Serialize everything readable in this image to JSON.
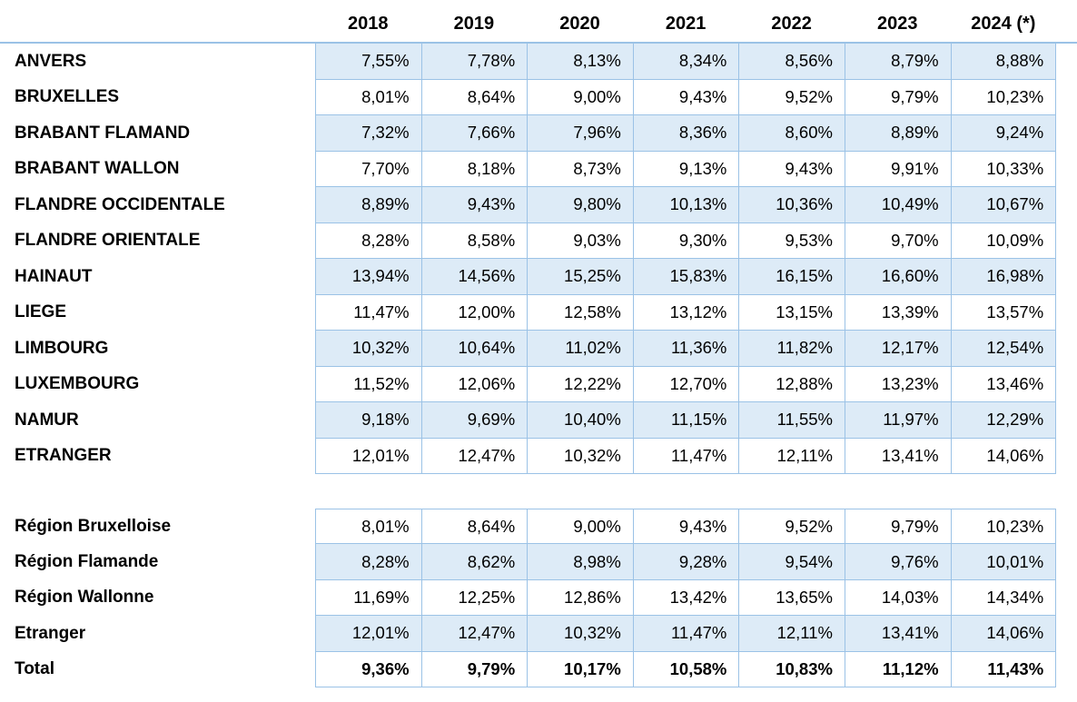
{
  "chart_data": {
    "type": "table",
    "columns": [
      "2018",
      "2019",
      "2020",
      "2021",
      "2022",
      "2023",
      "2024 (*)"
    ],
    "provinces": {
      "rows": [
        {
          "label": "ANVERS",
          "values": [
            "7,55%",
            "7,78%",
            "8,13%",
            "8,34%",
            "8,56%",
            "8,79%",
            "8,88%"
          ]
        },
        {
          "label": "BRUXELLES",
          "values": [
            "8,01%",
            "8,64%",
            "9,00%",
            "9,43%",
            "9,52%",
            "9,79%",
            "10,23%"
          ]
        },
        {
          "label": "BRABANT FLAMAND",
          "values": [
            "7,32%",
            "7,66%",
            "7,96%",
            "8,36%",
            "8,60%",
            "8,89%",
            "9,24%"
          ]
        },
        {
          "label": "BRABANT WALLON",
          "values": [
            "7,70%",
            "8,18%",
            "8,73%",
            "9,13%",
            "9,43%",
            "9,91%",
            "10,33%"
          ]
        },
        {
          "label": "FLANDRE OCCIDENTALE",
          "values": [
            "8,89%",
            "9,43%",
            "9,80%",
            "10,13%",
            "10,36%",
            "10,49%",
            "10,67%"
          ]
        },
        {
          "label": "FLANDRE ORIENTALE",
          "values": [
            "8,28%",
            "8,58%",
            "9,03%",
            "9,30%",
            "9,53%",
            "9,70%",
            "10,09%"
          ]
        },
        {
          "label": "HAINAUT",
          "values": [
            "13,94%",
            "14,56%",
            "15,25%",
            "15,83%",
            "16,15%",
            "16,60%",
            "16,98%"
          ]
        },
        {
          "label": "LIEGE",
          "values": [
            "11,47%",
            "12,00%",
            "12,58%",
            "13,12%",
            "13,15%",
            "13,39%",
            "13,57%"
          ]
        },
        {
          "label": "LIMBOURG",
          "values": [
            "10,32%",
            "10,64%",
            "11,02%",
            "11,36%",
            "11,82%",
            "12,17%",
            "12,54%"
          ]
        },
        {
          "label": "LUXEMBOURG",
          "values": [
            "11,52%",
            "12,06%",
            "12,22%",
            "12,70%",
            "12,88%",
            "13,23%",
            "13,46%"
          ]
        },
        {
          "label": "NAMUR",
          "values": [
            "9,18%",
            "9,69%",
            "10,40%",
            "11,15%",
            "11,55%",
            "11,97%",
            "12,29%"
          ]
        },
        {
          "label": "ETRANGER",
          "values": [
            "12,01%",
            "12,47%",
            "10,32%",
            "11,47%",
            "12,11%",
            "13,41%",
            "14,06%"
          ]
        }
      ]
    },
    "regions": {
      "rows": [
        {
          "label": "Région Bruxelloise",
          "values": [
            "8,01%",
            "8,64%",
            "9,00%",
            "9,43%",
            "9,52%",
            "9,79%",
            "10,23%"
          ]
        },
        {
          "label": "Région Flamande",
          "values": [
            "8,28%",
            "8,62%",
            "8,98%",
            "9,28%",
            "9,54%",
            "9,76%",
            "10,01%"
          ]
        },
        {
          "label": "Région Wallonne",
          "values": [
            "11,69%",
            "12,25%",
            "12,86%",
            "13,42%",
            "13,65%",
            "14,03%",
            "14,34%"
          ]
        },
        {
          "label": "Etranger",
          "values": [
            "12,01%",
            "12,47%",
            "10,32%",
            "11,47%",
            "12,11%",
            "13,41%",
            "14,06%"
          ]
        },
        {
          "label": "Total",
          "values": [
            "9,36%",
            "9,79%",
            "10,17%",
            "10,58%",
            "10,83%",
            "11,12%",
            "11,43%"
          ]
        }
      ]
    },
    "layout_hints": {
      "shading": "alternating light blue row bands",
      "total_row_bold": true
    }
  },
  "colors": {
    "band": "#DDEBF7",
    "border": "#9BC2E6",
    "text": "#000000"
  }
}
